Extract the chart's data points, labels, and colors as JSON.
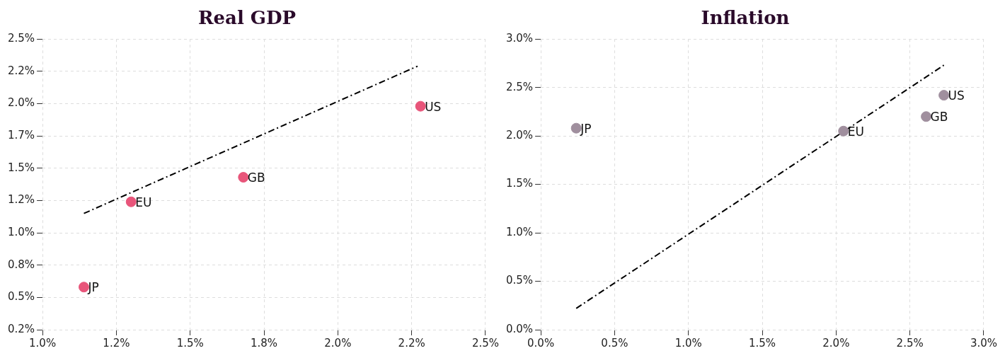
{
  "chart_data": [
    {
      "type": "scatter",
      "title": "Real GDP",
      "grid": true,
      "xlim": [
        1.0,
        2.5
      ],
      "ylim": [
        0.25,
        2.5
      ],
      "xticks": [
        {
          "value": 1.0,
          "label": "1.0%"
        },
        {
          "value": 1.25,
          "label": "1.2%"
        },
        {
          "value": 1.5,
          "label": "1.5%"
        },
        {
          "value": 1.75,
          "label": "1.8%"
        },
        {
          "value": 2.0,
          "label": "2.0%"
        },
        {
          "value": 2.25,
          "label": "2.2%"
        },
        {
          "value": 2.5,
          "label": "2.5%"
        }
      ],
      "yticks": [
        {
          "value": 0.25,
          "label": "0.2%"
        },
        {
          "value": 0.5,
          "label": "0.5%"
        },
        {
          "value": 0.75,
          "label": "0.8%"
        },
        {
          "value": 1.0,
          "label": "1.0%"
        },
        {
          "value": 1.25,
          "label": "1.2%"
        },
        {
          "value": 1.5,
          "label": "1.5%"
        },
        {
          "value": 1.75,
          "label": "1.7%"
        },
        {
          "value": 2.0,
          "label": "2.0%"
        },
        {
          "value": 2.25,
          "label": "2.2%"
        },
        {
          "value": 2.5,
          "label": "2.5%"
        }
      ],
      "series": [
        {
          "marker": "circle",
          "color": "#e8557a",
          "x": [
            1.14,
            1.3,
            1.68,
            2.28
          ],
          "values": [
            0.58,
            1.24,
            1.43,
            1.98
          ],
          "value_labels": [
            "JP",
            "EU",
            "GB",
            "US"
          ]
        },
        {
          "type": "line",
          "color": "#000000",
          "line_style": "dashed",
          "x": [
            1.14,
            2.27
          ],
          "values": [
            1.15,
            2.29
          ]
        }
      ]
    },
    {
      "type": "scatter",
      "title": "Inflation",
      "grid": true,
      "xlim": [
        0,
        3.0
      ],
      "ylim": [
        0,
        3.0
      ],
      "xticks": [
        {
          "value": 0,
          "label": "0.0%"
        },
        {
          "value": 0.5,
          "label": "0.5%"
        },
        {
          "value": 1.0,
          "label": "1.0%"
        },
        {
          "value": 1.5,
          "label": "1.5%"
        },
        {
          "value": 2.0,
          "label": "2.0%"
        },
        {
          "value": 2.5,
          "label": "2.5%"
        },
        {
          "value": 3.0,
          "label": "3.0%"
        }
      ],
      "yticks": [
        {
          "value": 0,
          "label": "0.0%"
        },
        {
          "value": 0.5,
          "label": "0.5%"
        },
        {
          "value": 1.0,
          "label": "1.0%"
        },
        {
          "value": 1.5,
          "label": "1.5%"
        },
        {
          "value": 2.0,
          "label": "2.0%"
        },
        {
          "value": 2.5,
          "label": "2.5%"
        },
        {
          "value": 3.0,
          "label": "3.0%"
        }
      ],
      "series": [
        {
          "marker": "circle",
          "color": "#a08f9e",
          "x": [
            0.24,
            2.05,
            2.61,
            2.73
          ],
          "values": [
            2.08,
            2.05,
            2.2,
            2.42
          ],
          "value_labels": [
            "JP",
            "EU",
            "GB",
            "US"
          ]
        },
        {
          "type": "line",
          "color": "#000000",
          "line_style": "dashed",
          "x": [
            0.24,
            2.73
          ],
          "values": [
            0.22,
            2.73
          ]
        }
      ]
    }
  ]
}
